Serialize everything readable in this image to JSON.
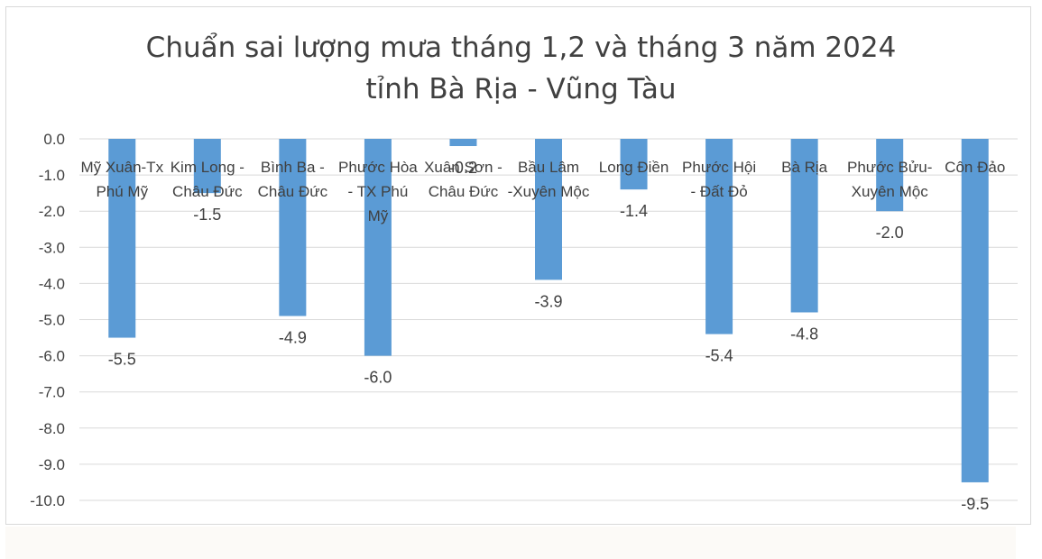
{
  "chart_data": {
    "type": "bar",
    "title": "Chuẩn sai lượng mưa tháng 1,2 và tháng 3 năm 2024",
    "subtitle": "tỉnh Bà Rịa - Vũng Tàu",
    "categories": [
      "Mỹ Xuân-Tx Phú Mỹ",
      "Kim Long - Châu Đức",
      "Bình Ba - Châu Đức",
      "Phước Hòa - TX Phú Mỹ",
      "Xuân Sơn - Châu Đức",
      "Bầu Lâm -Xuyên Mộc",
      "Long Điền",
      "Phước Hội - Đất Đỏ",
      "Bà Rịa",
      "Phước Bửu- Xuyên Mộc",
      "Côn Đảo"
    ],
    "values": [
      -5.5,
      -1.5,
      -4.9,
      -6.0,
      -0.2,
      -3.9,
      -1.4,
      -5.4,
      -4.8,
      -2.0,
      -9.5
    ],
    "value_labels": [
      "-5.5",
      "-1.5",
      "-4.9",
      "-6.0",
      "-0.2",
      "-3.9",
      "-1.4",
      "-5.4",
      "-4.8",
      "-2.0",
      "-9.5"
    ],
    "y_ticks": [
      "0.0",
      "-1.0",
      "-2.0",
      "-3.0",
      "-4.0",
      "-5.0",
      "-6.0",
      "-7.0",
      "-8.0",
      "-9.0",
      "-10.0"
    ],
    "ylim": [
      -10,
      0
    ],
    "xlabel": "",
    "ylabel": "",
    "grid": true,
    "legend": "none",
    "bar_color": "#5b9bd5"
  }
}
